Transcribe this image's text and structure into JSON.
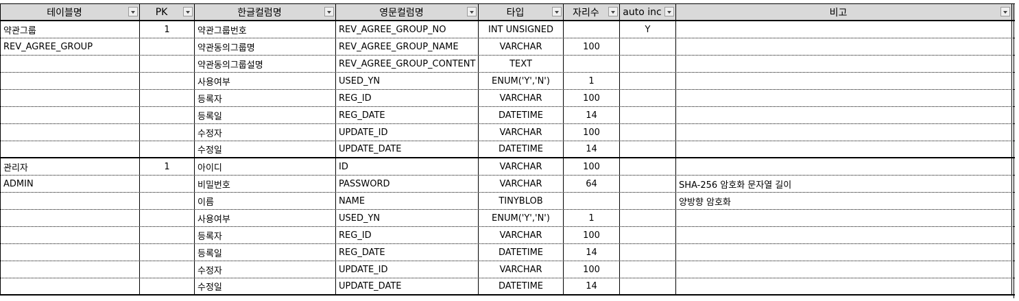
{
  "headers": [
    {
      "label": "테이블명"
    },
    {
      "label": "PK"
    },
    {
      "label": "한글컬럼명"
    },
    {
      "label": "영문컬럼명"
    },
    {
      "label": "타입"
    },
    {
      "label": "자리수"
    },
    {
      "label": "auto inc"
    },
    {
      "label": "비고"
    }
  ],
  "groups": [
    {
      "rows": [
        {
          "table": "약관그룹",
          "pk": "1",
          "kor": "약관그룹번호",
          "eng": "REV_AGREE_GROUP_NO",
          "type": "INT UNSIGNED",
          "len": "",
          "auto": "Y",
          "note": ""
        },
        {
          "table": "REV_AGREE_GROUP",
          "pk": "",
          "kor": "약관동의그룹명",
          "eng": "REV_AGREE_GROUP_NAME",
          "type": "VARCHAR",
          "len": "100",
          "auto": "",
          "note": ""
        },
        {
          "table": "",
          "pk": "",
          "kor": "약관동의그룹설명",
          "eng": "REV_AGREE_GROUP_CONTENT",
          "type": "TEXT",
          "len": "",
          "auto": "",
          "note": ""
        },
        {
          "table": "",
          "pk": "",
          "kor": "사용여부",
          "eng": "USED_YN",
          "type": "ENUM('Y','N')",
          "len": "1",
          "auto": "",
          "note": ""
        },
        {
          "table": "",
          "pk": "",
          "kor": "등록자",
          "eng": "REG_ID",
          "type": "VARCHAR",
          "len": "100",
          "auto": "",
          "note": ""
        },
        {
          "table": "",
          "pk": "",
          "kor": "등록일",
          "eng": "REG_DATE",
          "type": "DATETIME",
          "len": "14",
          "auto": "",
          "note": ""
        },
        {
          "table": "",
          "pk": "",
          "kor": "수정자",
          "eng": "UPDATE_ID",
          "type": "VARCHAR",
          "len": "100",
          "auto": "",
          "note": ""
        },
        {
          "table": "",
          "pk": "",
          "kor": "수정일",
          "eng": "UPDATE_DATE",
          "type": "DATETIME",
          "len": "14",
          "auto": "",
          "note": ""
        }
      ]
    },
    {
      "rows": [
        {
          "table": "관리자",
          "pk": "1",
          "kor": "아이디",
          "eng": "ID",
          "type": "VARCHAR",
          "len": "100",
          "auto": "",
          "note": ""
        },
        {
          "table": "ADMIN",
          "pk": "",
          "kor": "비밀번호",
          "eng": "PASSWORD",
          "type": "VARCHAR",
          "len": "64",
          "auto": "",
          "note": "SHA-256 암호화 문자열 길이"
        },
        {
          "table": "",
          "pk": "",
          "kor": "이름",
          "eng": "NAME",
          "type": "TINYBLOB",
          "len": "",
          "auto": "",
          "note": "양방향 암호화"
        },
        {
          "table": "",
          "pk": "",
          "kor": "사용여부",
          "eng": "USED_YN",
          "type": "ENUM('Y','N')",
          "len": "1",
          "auto": "",
          "note": ""
        },
        {
          "table": "",
          "pk": "",
          "kor": "등록자",
          "eng": "REG_ID",
          "type": "VARCHAR",
          "len": "100",
          "auto": "",
          "note": ""
        },
        {
          "table": "",
          "pk": "",
          "kor": "등록일",
          "eng": "REG_DATE",
          "type": "DATETIME",
          "len": "14",
          "auto": "",
          "note": ""
        },
        {
          "table": "",
          "pk": "",
          "kor": "수정자",
          "eng": "UPDATE_ID",
          "type": "VARCHAR",
          "len": "100",
          "auto": "",
          "note": ""
        },
        {
          "table": "",
          "pk": "",
          "kor": "수정일",
          "eng": "UPDATE_DATE",
          "type": "DATETIME",
          "len": "14",
          "auto": "",
          "note": ""
        }
      ]
    }
  ],
  "colors": {
    "header_bg": "#d9d9d9",
    "border": "#000000"
  },
  "icons": {
    "filter": "filter-dropdown-icon"
  }
}
